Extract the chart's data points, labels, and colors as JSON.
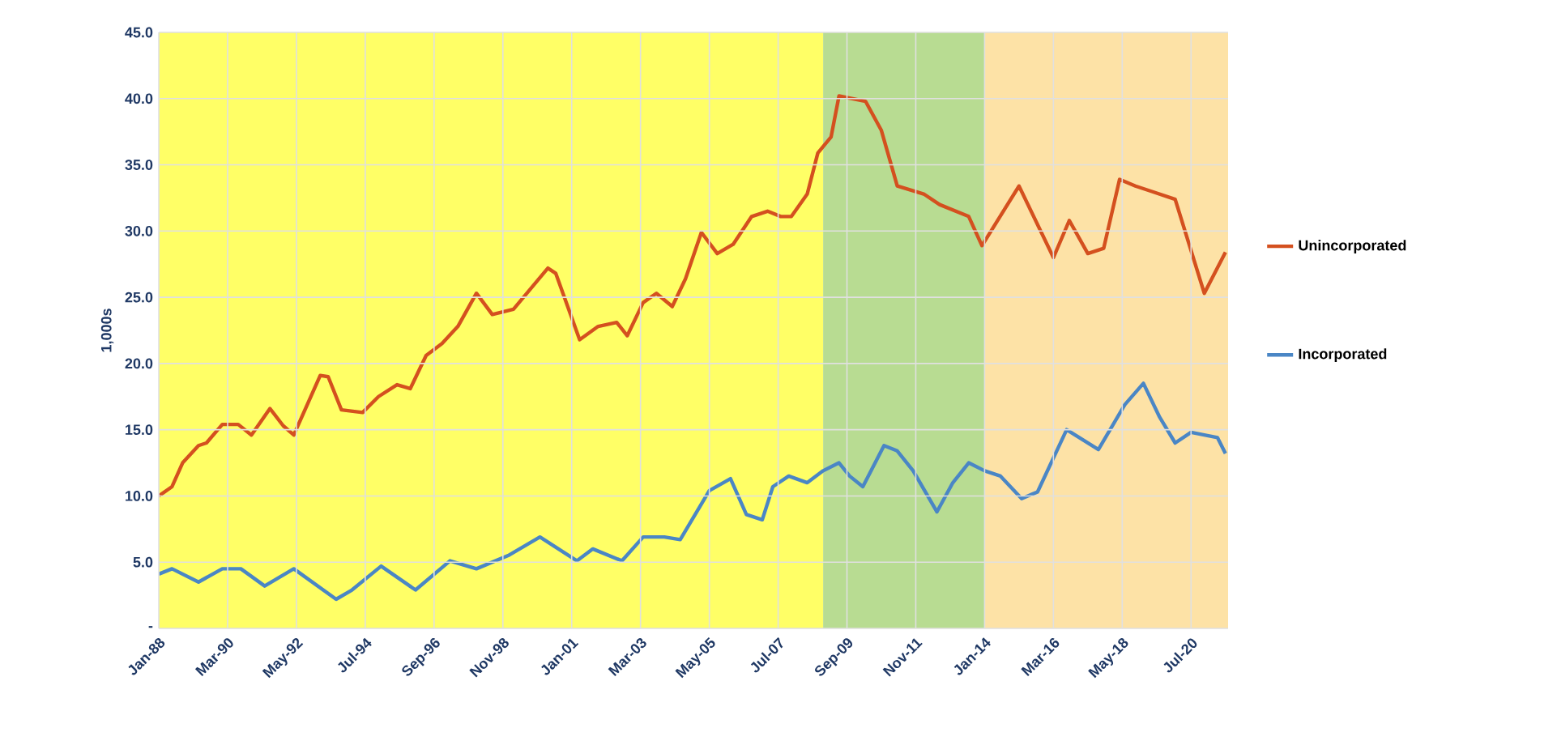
{
  "chart_data": {
    "type": "line",
    "ylabel": "1,000s",
    "xlim": [
      "1988-01",
      "2021-09"
    ],
    "ylim": [
      0,
      45
    ],
    "yticks": [
      {
        "value": 0,
        "label": "-"
      },
      {
        "value": 5,
        "label": "5.0"
      },
      {
        "value": 10,
        "label": "10.0"
      },
      {
        "value": 15,
        "label": "15.0"
      },
      {
        "value": 20,
        "label": "20.0"
      },
      {
        "value": 25,
        "label": "25.0"
      },
      {
        "value": 30,
        "label": "30.0"
      },
      {
        "value": 35,
        "label": "35.0"
      },
      {
        "value": 40,
        "label": "40.0"
      },
      {
        "value": 45,
        "label": "45.0"
      }
    ],
    "xticks": [
      {
        "value": "1988-01",
        "label": "Jan-88"
      },
      {
        "value": "1990-03",
        "label": "Mar-90"
      },
      {
        "value": "1992-05",
        "label": "May-92"
      },
      {
        "value": "1994-07",
        "label": "Jul-94"
      },
      {
        "value": "1996-09",
        "label": "Sep-96"
      },
      {
        "value": "1998-11",
        "label": "Nov-98"
      },
      {
        "value": "2001-01",
        "label": "Jan-01"
      },
      {
        "value": "2003-03",
        "label": "Mar-03"
      },
      {
        "value": "2005-05",
        "label": "May-05"
      },
      {
        "value": "2007-07",
        "label": "Jul-07"
      },
      {
        "value": "2009-09",
        "label": "Sep-09"
      },
      {
        "value": "2011-11",
        "label": "Nov-11"
      },
      {
        "value": "2014-01",
        "label": "Jan-14"
      },
      {
        "value": "2016-03",
        "label": "Mar-16"
      },
      {
        "value": "2018-05",
        "label": "May-18"
      },
      {
        "value": "2020-07",
        "label": "Jul-20"
      }
    ],
    "grid": true,
    "legend": "right",
    "bands": [
      {
        "axis": "x",
        "from": "1988-01",
        "to": "2008-12",
        "color": "#ffff66"
      },
      {
        "axis": "x",
        "from": "2008-12",
        "to": "2014-01",
        "color": "#b8dc92"
      },
      {
        "axis": "x",
        "from": "2014-01",
        "to": "2021-09",
        "color": "#fde2a6"
      }
    ],
    "series": [
      {
        "name": "Unincorporated",
        "color": "#d4501f",
        "x": [
          "1988-01",
          "1988-06",
          "1988-10",
          "1989-04",
          "1989-07",
          "1990-01",
          "1990-07",
          "1990-12",
          "1991-07",
          "1991-12",
          "1992-04",
          "1993-02",
          "1993-05",
          "1993-10",
          "1994-06",
          "1994-12",
          "1995-07",
          "1995-12",
          "1996-06",
          "1996-12",
          "1997-06",
          "1998-01",
          "1998-07",
          "1999-03",
          "2000-04",
          "2000-07",
          "2001-04",
          "2001-11",
          "2002-06",
          "2002-10",
          "2003-04",
          "2003-09",
          "2004-03",
          "2004-08",
          "2005-02",
          "2005-08",
          "2006-02",
          "2006-09",
          "2007-03",
          "2007-08",
          "2007-12",
          "2008-06",
          "2008-10",
          "2009-03",
          "2009-06",
          "2010-04",
          "2010-10",
          "2011-04",
          "2012-02",
          "2012-08",
          "2013-07",
          "2013-12",
          "2015-02",
          "2016-03",
          "2016-09",
          "2017-04",
          "2017-10",
          "2018-04",
          "2018-10",
          "2019-04",
          "2020-01",
          "2020-12",
          "2021-08"
        ],
        "values": [
          10.0,
          10.7,
          12.5,
          13.8,
          14.0,
          15.4,
          15.4,
          14.6,
          16.6,
          15.3,
          14.6,
          19.1,
          19.0,
          16.5,
          16.3,
          17.5,
          18.4,
          18.1,
          20.6,
          21.5,
          22.8,
          25.3,
          23.7,
          24.1,
          27.2,
          26.8,
          21.8,
          22.8,
          23.1,
          22.1,
          24.6,
          25.3,
          24.3,
          26.4,
          29.9,
          28.3,
          29.0,
          31.1,
          31.5,
          31.1,
          31.1,
          32.8,
          35.9,
          37.1,
          40.2,
          39.8,
          37.6,
          33.4,
          32.8,
          32.0,
          31.1,
          28.9,
          33.4,
          28.0,
          30.8,
          28.3,
          28.7,
          33.9,
          33.4,
          33.0,
          32.4,
          25.3,
          28.4
        ]
      },
      {
        "name": "Incorporated",
        "color": "#4a86c5",
        "x": [
          "1988-01",
          "1988-06",
          "1989-04",
          "1990-01",
          "1990-08",
          "1991-05",
          "1992-04",
          "1993-08",
          "1994-02",
          "1995-01",
          "1996-02",
          "1997-03",
          "1998-01",
          "1999-01",
          "2000-01",
          "2001-03",
          "2001-09",
          "2002-08",
          "2003-04",
          "2003-12",
          "2004-06",
          "2005-05",
          "2006-01",
          "2006-07",
          "2007-01",
          "2007-05",
          "2007-11",
          "2008-06",
          "2008-12",
          "2009-06",
          "2009-10",
          "2010-03",
          "2010-11",
          "2011-04",
          "2011-10",
          "2012-07",
          "2013-01",
          "2013-07",
          "2014-01",
          "2014-07",
          "2015-03",
          "2015-09",
          "2016-08",
          "2017-08",
          "2018-06",
          "2019-01",
          "2019-07",
          "2020-01",
          "2020-07",
          "2021-05",
          "2021-08"
        ],
        "values": [
          4.1,
          4.5,
          3.5,
          4.5,
          4.5,
          3.2,
          4.5,
          2.2,
          2.9,
          4.7,
          2.9,
          5.1,
          4.5,
          5.5,
          6.9,
          5.1,
          6.0,
          5.1,
          6.9,
          6.9,
          6.7,
          10.4,
          11.3,
          8.6,
          8.2,
          10.7,
          11.5,
          11.0,
          11.9,
          12.5,
          11.5,
          10.7,
          13.8,
          13.4,
          11.9,
          8.8,
          11.0,
          12.5,
          11.9,
          11.5,
          9.8,
          10.3,
          15.0,
          13.5,
          16.9,
          18.5,
          16.0,
          14.0,
          14.8,
          14.4,
          13.2
        ]
      }
    ]
  }
}
